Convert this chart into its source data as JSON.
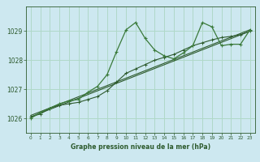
{
  "title": "Graphe pression niveau de la mer (hPa)",
  "bg_color": "#cde8f0",
  "grid_color": "#b0d8c8",
  "line_color_dark": "#2d5a2d",
  "line_color_mid": "#3a7a3a",
  "xlim": [
    -0.5,
    23.5
  ],
  "ylim": [
    1025.5,
    1029.85
  ],
  "xticks": [
    0,
    1,
    2,
    3,
    4,
    5,
    6,
    7,
    8,
    9,
    10,
    11,
    12,
    13,
    14,
    15,
    16,
    17,
    18,
    19,
    20,
    21,
    22,
    23
  ],
  "yticks": [
    1026,
    1027,
    1028,
    1029
  ],
  "series1_x": [
    0,
    1,
    2,
    3,
    4,
    5,
    6,
    7,
    8,
    9,
    10,
    11,
    12,
    13,
    14,
    15,
    16,
    17,
    18,
    19,
    20,
    21,
    22,
    23
  ],
  "series1_y": [
    1026.0,
    1026.2,
    1026.35,
    1026.5,
    1026.6,
    1026.65,
    1026.9,
    1027.1,
    1027.5,
    1028.3,
    1029.05,
    1029.3,
    1028.75,
    1028.35,
    1028.15,
    1028.05,
    1028.25,
    1028.5,
    1029.3,
    1029.15,
    1028.5,
    1028.55,
    1028.55,
    1029.05
  ],
  "series2_x": [
    0,
    1,
    2,
    3,
    4,
    5,
    6,
    7,
    8,
    9,
    10,
    11,
    12,
    13,
    14,
    15,
    16,
    17,
    18,
    19,
    20,
    21,
    22,
    23
  ],
  "series2_y": [
    1026.05,
    1026.15,
    1026.35,
    1026.45,
    1026.5,
    1026.55,
    1026.65,
    1026.75,
    1026.95,
    1027.25,
    1027.55,
    1027.7,
    1027.85,
    1028.0,
    1028.1,
    1028.2,
    1028.35,
    1028.5,
    1028.6,
    1028.7,
    1028.78,
    1028.82,
    1028.88,
    1029.0
  ],
  "series3_x": [
    0,
    23
  ],
  "series3_y": [
    1026.05,
    1029.0
  ],
  "series4_x": [
    0,
    23
  ],
  "series4_y": [
    1026.1,
    1029.05
  ]
}
